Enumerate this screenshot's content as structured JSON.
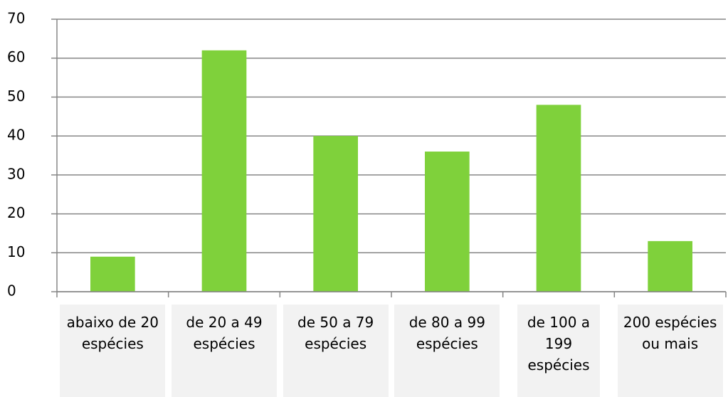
{
  "chart_data": {
    "type": "bar",
    "categories": [
      "abaixo de 20 espécies",
      "de 20 a 49 espécies",
      "de 50 a 79 espécies",
      "de 80 a 99 espécies",
      "de 100 a 199 espécies",
      "200 espécies ou mais"
    ],
    "values": [
      9,
      62,
      40,
      36,
      48,
      13
    ],
    "color": "#7fd13b",
    "ylim": [
      0,
      70
    ],
    "yticks": [
      0,
      10,
      20,
      30,
      40,
      50,
      60,
      70
    ],
    "grid": true
  }
}
